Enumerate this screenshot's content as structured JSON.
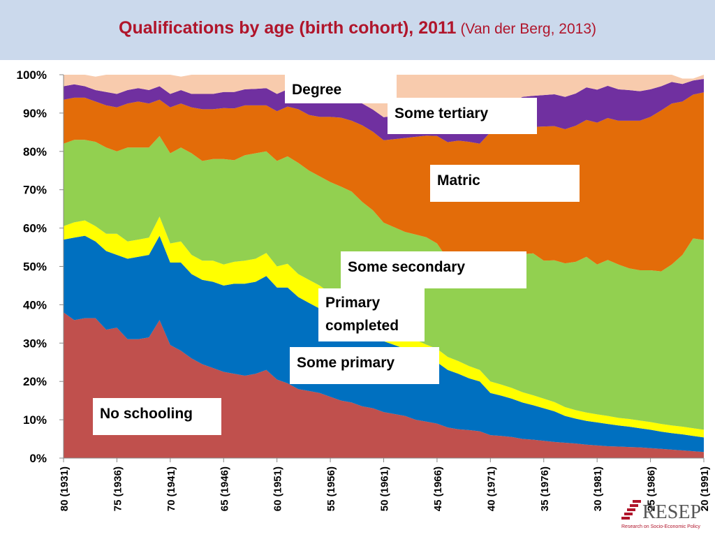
{
  "header": {
    "title_main": "Qualifications by age (birth cohort), 2011",
    "title_source": "(Van der Berg, 2013)"
  },
  "logo": {
    "text": "RESEP",
    "subtitle": "Research on Socio-Economic Policy",
    "color": "#b0152b"
  },
  "chart_data": {
    "type": "area",
    "stacked": true,
    "normalized_percent": true,
    "ylim": [
      0,
      100
    ],
    "ytick_labels": [
      "0%",
      "10%",
      "20%",
      "30%",
      "40%",
      "50%",
      "60%",
      "70%",
      "80%",
      "90%",
      "100%"
    ],
    "x": [
      80,
      79,
      78,
      77,
      76,
      75,
      74,
      73,
      72,
      71,
      70,
      69,
      68,
      67,
      66,
      65,
      64,
      63,
      62,
      61,
      60,
      59,
      58,
      57,
      56,
      55,
      54,
      53,
      52,
      51,
      50,
      49,
      48,
      47,
      46,
      45,
      44,
      43,
      42,
      41,
      40,
      39,
      38,
      37,
      36,
      35,
      34,
      33,
      32,
      31,
      30,
      29,
      28,
      27,
      26,
      25,
      24,
      23,
      22,
      21,
      20
    ],
    "xtick_labels": [
      "80 (1931)",
      "75 (1936)",
      "70 (1941)",
      "65 (1946)",
      "60 (1951)",
      "55 (1956)",
      "50 (1961)",
      "45 (1966)",
      "40 (1971)",
      "35 (1976)",
      "30 (1981)",
      "25 (1986)",
      "20 (1991)"
    ],
    "xtick_values": [
      80,
      75,
      70,
      65,
      60,
      55,
      50,
      45,
      40,
      35,
      30,
      25,
      20
    ],
    "series": [
      {
        "name": "No schooling",
        "color": "#c0504d",
        "values": [
          38,
          36,
          36.5,
          36.5,
          33.5,
          34,
          31,
          31,
          31.5,
          36,
          29.5,
          28,
          26,
          24.5,
          23.5,
          22.5,
          22,
          21.5,
          22,
          23,
          20.5,
          19.5,
          18,
          17.5,
          17,
          16,
          15,
          14.5,
          13.5,
          13,
          12,
          11.5,
          11,
          10,
          9.5,
          9,
          8,
          7.5,
          7.3,
          7,
          6,
          5.8,
          5.5,
          5,
          4.8,
          4.5,
          4.2,
          4,
          3.8,
          3.5,
          3.3,
          3.1,
          3,
          2.9,
          2.8,
          2.6,
          2.4,
          2.2,
          2,
          1.8,
          1.6
        ]
      },
      {
        "name": "Some primary",
        "color": "#0070c0",
        "values": [
          19,
          21.5,
          21.5,
          20,
          20.5,
          19,
          21,
          21.5,
          21.5,
          22,
          21.5,
          23,
          22,
          22,
          22.5,
          22.5,
          23.5,
          24,
          24,
          24.5,
          24,
          25,
          24,
          23,
          22,
          21.5,
          21,
          20.5,
          20,
          19,
          18.5,
          18,
          17.5,
          17,
          16.5,
          16,
          15,
          14.5,
          13.5,
          13,
          11,
          10.5,
          10,
          9.5,
          9,
          8.5,
          8,
          7,
          6.5,
          6.2,
          6,
          5.8,
          5.5,
          5.3,
          5,
          4.8,
          4.5,
          4.3,
          4.2,
          4,
          3.8
        ]
      },
      {
        "name": "Primary completed",
        "color": "#ffff00",
        "values": [
          3.5,
          4,
          4,
          4,
          4.5,
          5.5,
          4.5,
          4.5,
          4.5,
          5,
          5,
          5.5,
          5,
          5,
          5.5,
          5.5,
          5.7,
          6,
          6,
          6,
          5.5,
          6.2,
          6,
          6,
          6,
          5.5,
          5.3,
          5,
          4.8,
          4.6,
          4.4,
          4.2,
          4,
          3.8,
          3.6,
          3.5,
          3.4,
          3.3,
          3.2,
          3,
          3,
          2.9,
          2.8,
          2.7,
          2.6,
          2.5,
          2.4,
          2.3,
          2.2,
          2.2,
          2.1,
          2.1,
          2,
          2,
          2,
          2,
          2,
          2,
          2,
          2,
          2
        ]
      },
      {
        "name": "Some secondary",
        "color": "#92d050",
        "values": [
          21.5,
          21.5,
          21,
          22,
          22.5,
          21.5,
          24.5,
          24,
          23.5,
          21,
          23.5,
          24.5,
          26.5,
          26,
          26.5,
          27.5,
          26.5,
          27.5,
          27.5,
          26.5,
          27.5,
          28,
          29,
          28.5,
          28.5,
          29,
          29.5,
          29.5,
          28.5,
          28,
          26.5,
          26.5,
          26.5,
          27.5,
          28,
          27.5,
          25.5,
          27.5,
          27,
          27,
          32,
          33,
          32.5,
          36,
          37,
          36,
          37,
          37.5,
          38.7,
          40.6,
          39.1,
          40.7,
          40,
          39.3,
          39.2,
          39.6,
          39.8,
          42,
          44.8,
          49.5,
          49.5
        ]
      },
      {
        "name": "Matric",
        "color": "#e36c09",
        "values": [
          11.5,
          11,
          11,
          10.5,
          11,
          11.5,
          11.5,
          12,
          11.5,
          9.5,
          12,
          11.5,
          12,
          13.5,
          13,
          13.3,
          13.5,
          13,
          12.5,
          12,
          13,
          13,
          14,
          14.5,
          15.5,
          17,
          18,
          18.5,
          20,
          20.5,
          21.5,
          23,
          24.5,
          25.5,
          26.5,
          28,
          30.5,
          30,
          31.5,
          32,
          33,
          33,
          34,
          33,
          33,
          35,
          35,
          35,
          35.5,
          35.7,
          37,
          37,
          37.5,
          38.5,
          39,
          40,
          42,
          42,
          40,
          37.5,
          38.5
        ]
      },
      {
        "name": "Some tertiary",
        "color": "#7030a0",
        "values": [
          3.5,
          3.5,
          3,
          3,
          3.5,
          3.5,
          3.5,
          3.5,
          3.5,
          3.5,
          3.5,
          3.5,
          3.5,
          4,
          4,
          4.2,
          4.3,
          4.2,
          4.3,
          4.5,
          4.5,
          4.5,
          4.7,
          5,
          5,
          5.2,
          5.4,
          5.6,
          5.7,
          5.8,
          6,
          6.1,
          6.2,
          6.3,
          6.5,
          6.7,
          6.9,
          7.1,
          7.3,
          7.5,
          7.8,
          7.8,
          7.9,
          8,
          8.1,
          8.2,
          8.3,
          8.4,
          8.4,
          8.5,
          8.6,
          8.4,
          8.2,
          8,
          7.7,
          7.2,
          6.3,
          5.6,
          4.6,
          3.7,
          3.5
        ]
      },
      {
        "name": "Degree",
        "color": "#f8cbad",
        "values": [
          3,
          2.5,
          3,
          3.5,
          4.5,
          5,
          4,
          3.5,
          4,
          3,
          5,
          3.5,
          5,
          5,
          5,
          4.5,
          4.5,
          3.8,
          3.7,
          3.5,
          5,
          3.8,
          4.3,
          5.5,
          6,
          5.8,
          5.8,
          6.4,
          7.5,
          9.1,
          11.1,
          10.7,
          10.3,
          9.9,
          9.4,
          9.3,
          10.7,
          10.1,
          10.2,
          10.5,
          7.2,
          7,
          7.3,
          5.8,
          5.5,
          5.3,
          5.1,
          5.8,
          4.9,
          3.3,
          3.9,
          2.9,
          3.8,
          4,
          4.3,
          3.8,
          3,
          1.9,
          1.4,
          0.5,
          1.1
        ]
      }
    ],
    "labels": {
      "degree": "Degree",
      "some_tertiary": "Some tertiary",
      "matric": "Matric",
      "some_secondary": "Some secondary",
      "primary_completed": "Primary completed",
      "some_primary": "Some primary",
      "no_schooling": "No schooling"
    }
  }
}
